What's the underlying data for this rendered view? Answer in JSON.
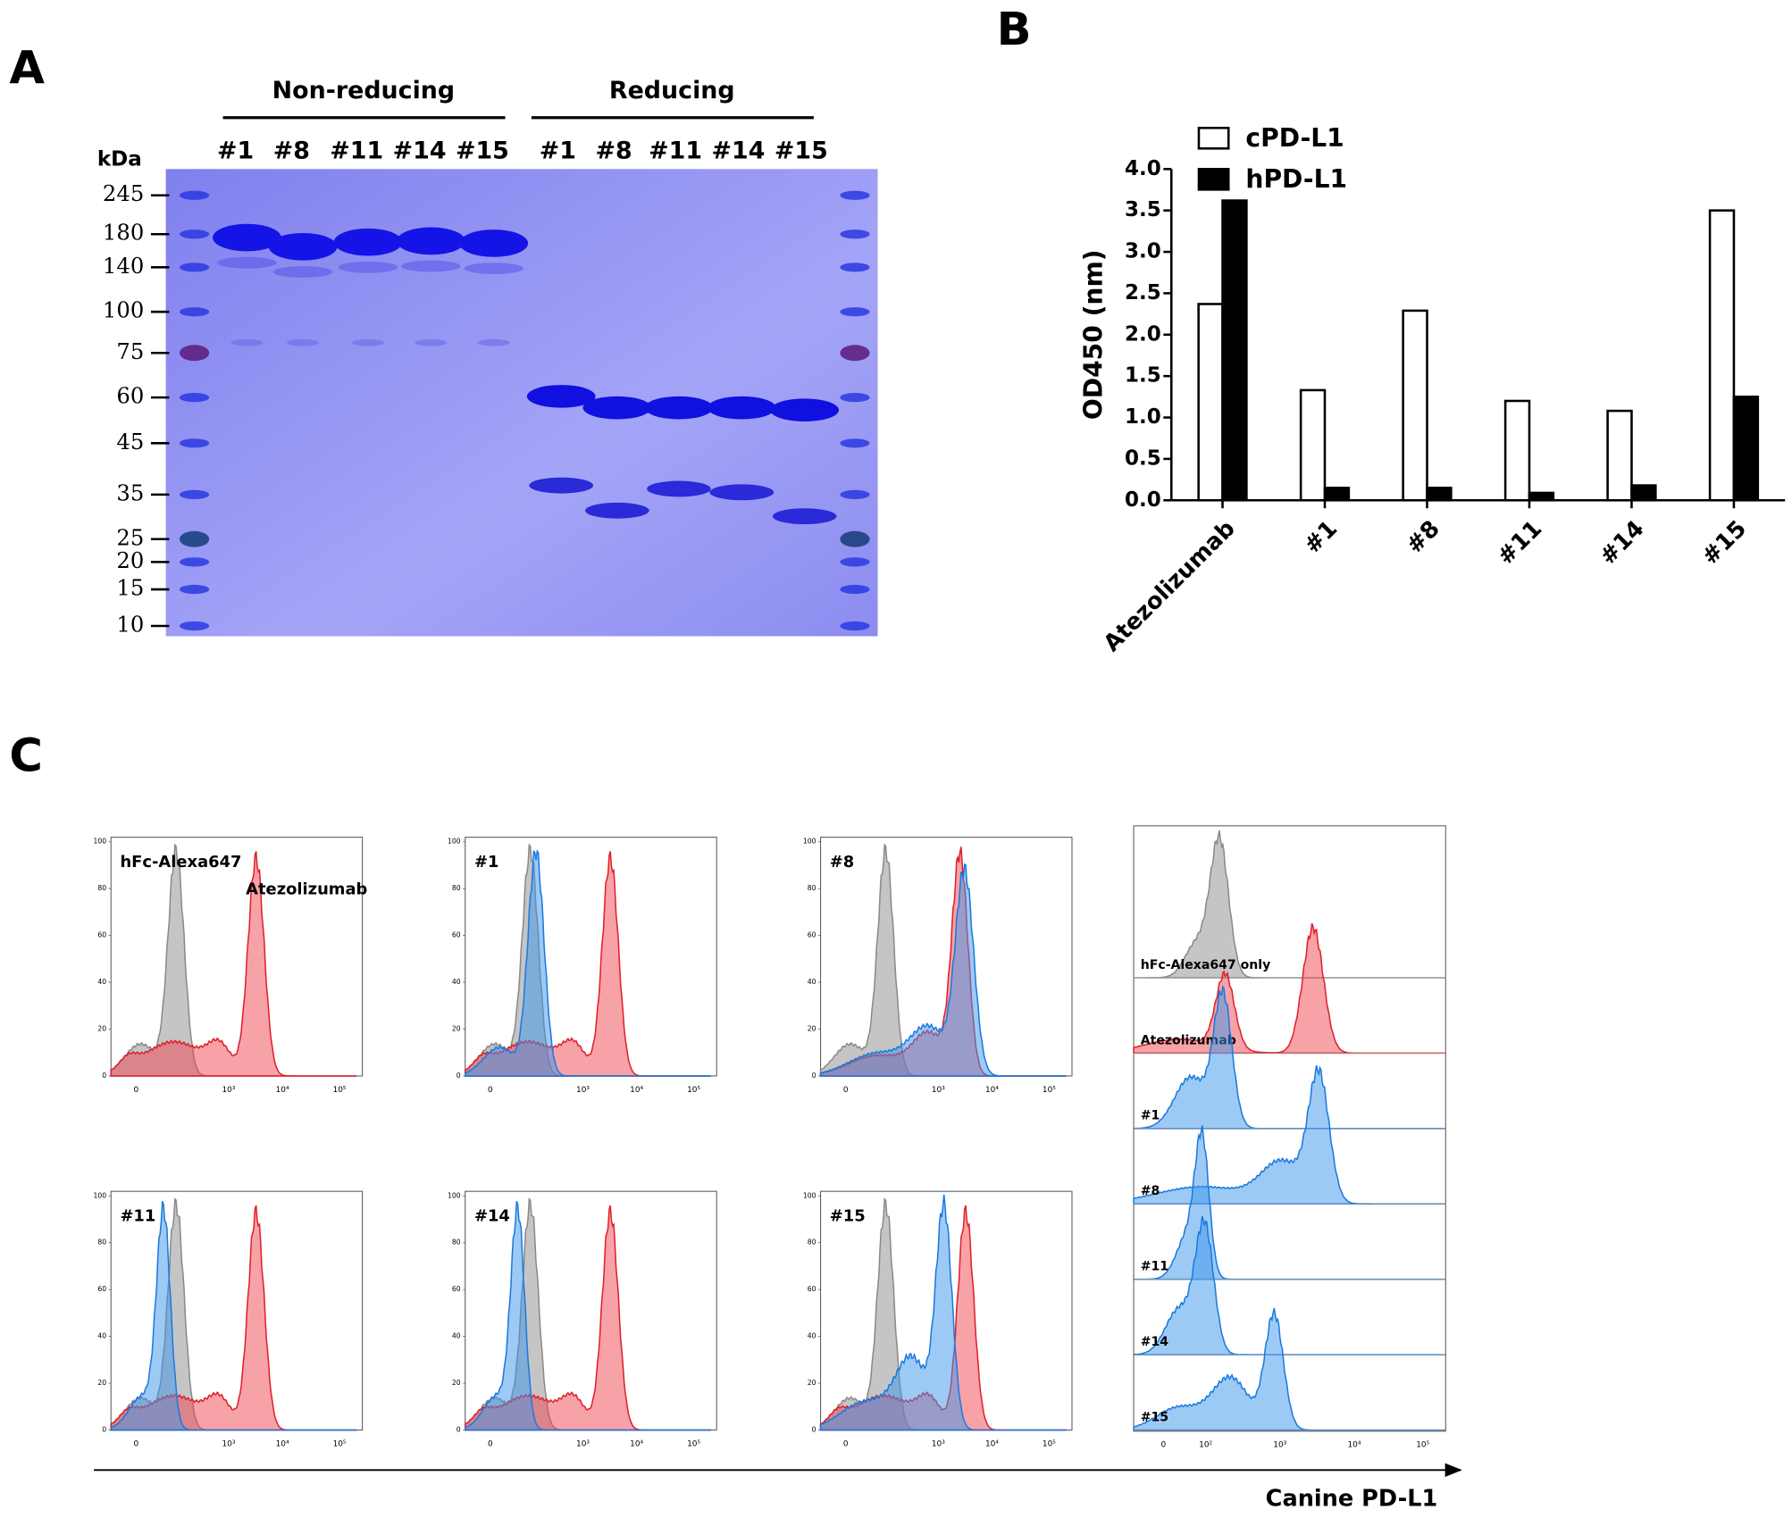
{
  "panel_labels": [
    "A",
    "B",
    "C"
  ],
  "gel": {
    "kda_label": "kDa",
    "markers": [
      245,
      180,
      140,
      100,
      75,
      60,
      45,
      35,
      25,
      20,
      15,
      10
    ],
    "groups": [
      {
        "name": "Non-reducing",
        "lanes": [
          "#1",
          "#8",
          "#11",
          "#14",
          "#15"
        ]
      },
      {
        "name": "Reducing",
        "lanes": [
          "#1",
          "#8",
          "#11",
          "#14",
          "#15"
        ]
      }
    ]
  },
  "chart_data": {
    "type": "bar",
    "y_label": "OD450  (nm)",
    "categories": [
      "Atezolizumab",
      "#1",
      "#8",
      "#11",
      "#14",
      "#15"
    ],
    "series": [
      {
        "name": "cPD-L1",
        "color": "#ffffff",
        "values": [
          2.37,
          1.33,
          2.29,
          1.2,
          1.08,
          3.5
        ]
      },
      {
        "name": "hPD-L1",
        "color": "#000000",
        "values": [
          3.62,
          0.15,
          0.15,
          0.09,
          0.18,
          1.25
        ]
      }
    ],
    "ylim": [
      0,
      4
    ],
    "yticks": [
      {
        "value": 0,
        "label": "0.0"
      },
      0.5,
      {
        "value": 1,
        "label": "1.0"
      },
      1.5,
      {
        "value": 2,
        "label": "2.0"
      },
      2.5,
      {
        "value": 3,
        "label": "3.0"
      },
      3.5,
      {
        "value": 4,
        "label": "4.0"
      }
    ],
    "legend": "top-left"
  },
  "flow": {
    "panels": [
      {
        "labels": [
          "hFc-Alexa647",
          "Atezolizumab"
        ]
      },
      {
        "labels": [
          "#1"
        ]
      },
      {
        "labels": [
          "#8"
        ]
      },
      {
        "labels": [
          "#11"
        ]
      },
      {
        "labels": [
          "#14"
        ]
      },
      {
        "labels": [
          "#15"
        ]
      }
    ],
    "yticks": [
      0,
      20,
      40,
      60,
      80,
      100
    ],
    "xticks": [
      "0",
      "10³",
      "10⁴",
      "10⁵"
    ],
    "stack": {
      "rows": [
        "hFc-Alexa647 only",
        "Atezolizumab",
        "#1",
        "#8",
        "#11",
        "#14",
        "#15"
      ],
      "xticks": [
        "0",
        "10²",
        "10³",
        "10⁴",
        "10⁵"
      ]
    },
    "x_axis_label": "Canine PD-L1"
  }
}
